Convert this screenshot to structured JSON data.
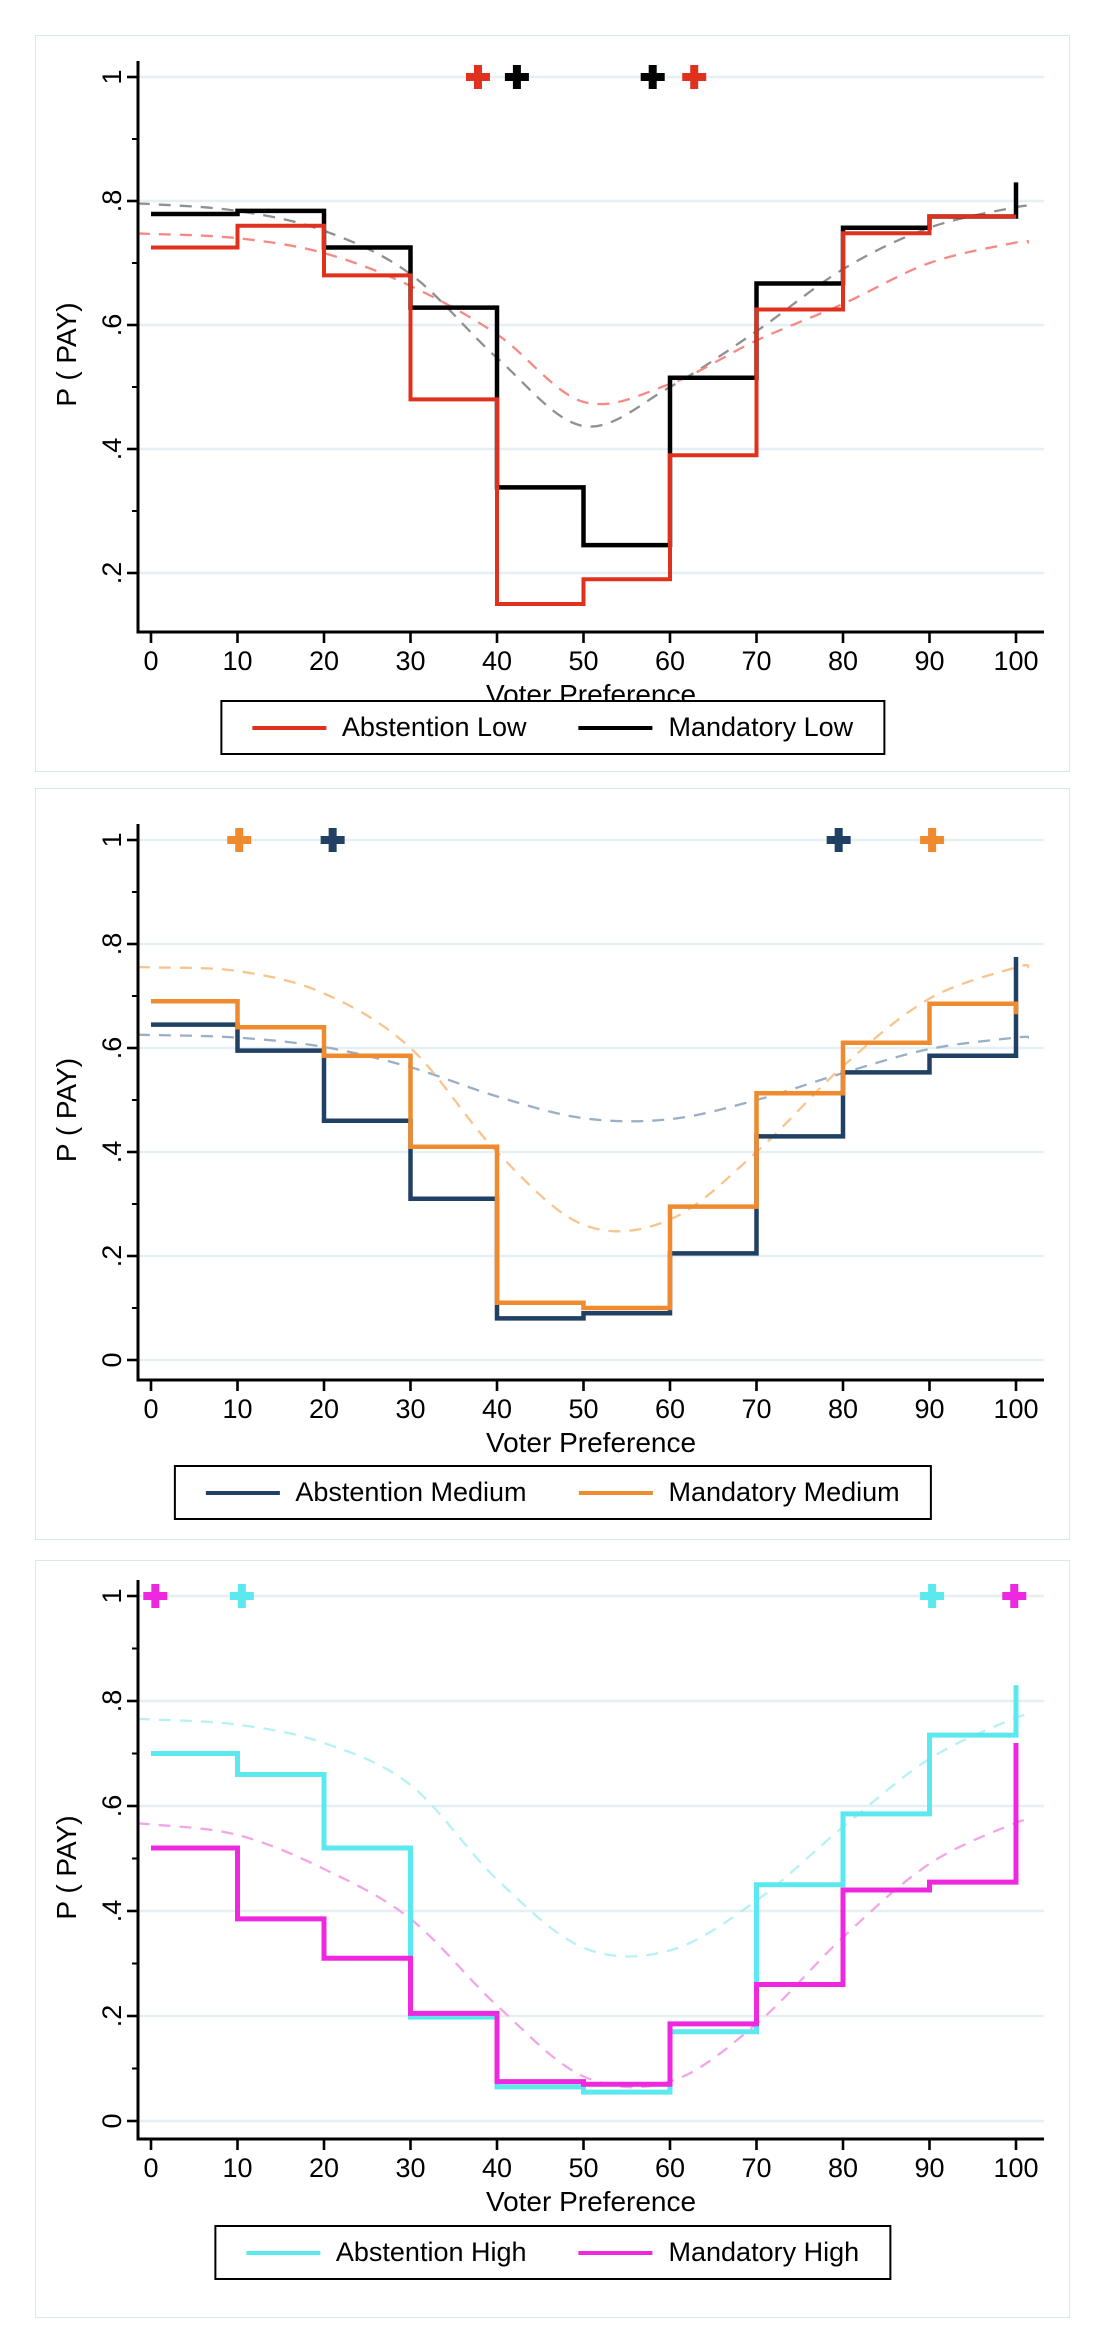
{
  "page": {
    "background": "#ffffff"
  },
  "chart_data": [
    {
      "type": "step-line",
      "panel": "low-stakes",
      "xlabel": "Voter Preference",
      "ylabel": "P ( PAY)",
      "x_ticks": [
        0,
        10,
        20,
        30,
        40,
        50,
        60,
        70,
        80,
        90,
        100
      ],
      "y_ticks": [
        {
          "label": "1",
          "value": 1
        },
        {
          "label": ".8",
          "value": 0.8
        },
        {
          "label": ".6",
          "value": 0.6
        },
        {
          "label": ".4",
          "value": 0.4
        },
        {
          "label": ".2",
          "value": 0.2
        }
      ],
      "y_minor_ticks": [
        0.9,
        0.7,
        0.5,
        0.3
      ],
      "ylim": [
        0.105,
        1.03
      ],
      "xlim": [
        0,
        100
      ],
      "grid": true,
      "legend_position": "bottom-center",
      "step_x": [
        0,
        10,
        20,
        30,
        40,
        50,
        60,
        70,
        80,
        90,
        100
      ],
      "series": [
        {
          "name": "Abstention Low",
          "color": "#e0301e",
          "line_width": 4,
          "draw_order": 2,
          "step_values": [
            0.725,
            0.76,
            0.68,
            0.48,
            0.15,
            0.19,
            0.39,
            0.625,
            0.748,
            0.775
          ],
          "end_value": null,
          "markers_y1_x": [
            37.8,
            62.8
          ],
          "fit_curve": {
            "color": "#f58a85",
            "x": [
              0,
              10,
              20,
              30,
              40,
              50,
              60,
              70,
              80,
              90,
              100
            ],
            "y": [
              0.747,
              0.74,
              0.716,
              0.663,
              0.585,
              0.476,
              0.505,
              0.575,
              0.634,
              0.7,
              0.733
            ]
          }
        },
        {
          "name": "Mandatory Low",
          "color": "#000000",
          "line_width": 4.5,
          "draw_order": 1,
          "step_values": [
            0.779,
            0.784,
            0.725,
            0.628,
            0.338,
            0.245,
            0.515,
            0.667,
            0.757,
            0.775
          ],
          "end_value": 0.83,
          "markers_y1_x": [
            42.3,
            58.0
          ],
          "fit_curve": {
            "color": "#8f9090",
            "x": [
              0,
              10,
              20,
              30,
              40,
              50,
              60,
              70,
              80,
              90,
              100
            ],
            "y": [
              0.795,
              0.784,
              0.752,
              0.682,
              0.547,
              0.437,
              0.5,
              0.59,
              0.69,
              0.757,
              0.79
            ]
          }
        }
      ]
    },
    {
      "type": "step-line",
      "panel": "medium-stakes",
      "xlabel": "Voter Preference",
      "ylabel": "P ( PAY)",
      "x_ticks": [
        0,
        10,
        20,
        30,
        40,
        50,
        60,
        70,
        80,
        90,
        100
      ],
      "y_ticks": [
        {
          "label": "1",
          "value": 1
        },
        {
          "label": ".8",
          "value": 0.8
        },
        {
          "label": ".6",
          "value": 0.6
        },
        {
          "label": ".4",
          "value": 0.4
        },
        {
          "label": ".2",
          "value": 0.2
        },
        {
          "label": "0",
          "value": 0
        }
      ],
      "y_minor_ticks": [
        0.9,
        0.7,
        0.5,
        0.3,
        0.1
      ],
      "ylim": [
        -0.04,
        1.03
      ],
      "xlim": [
        0,
        100
      ],
      "grid": true,
      "legend_position": "bottom-center",
      "step_x": [
        0,
        10,
        20,
        30,
        40,
        50,
        60,
        70,
        80,
        90,
        100
      ],
      "series": [
        {
          "name": "Abstention Medium",
          "color": "#204064",
          "line_width": 4.5,
          "draw_order": 1,
          "step_values": [
            0.645,
            0.595,
            0.46,
            0.31,
            0.08,
            0.09,
            0.205,
            0.43,
            0.553,
            0.585
          ],
          "end_value": 0.775,
          "markers_y1_x": [
            21.0,
            79.5
          ],
          "fit_curve": {
            "color": "#9aafc4",
            "x": [
              0,
              10,
              20,
              30,
              40,
              50,
              60,
              70,
              80,
              90,
              100
            ],
            "y": [
              0.625,
              0.62,
              0.602,
              0.563,
              0.507,
              0.465,
              0.463,
              0.5,
              0.552,
              0.598,
              0.62
            ]
          }
        },
        {
          "name": "Mandatory Medium",
          "color": "#ef8b2e",
          "line_width": 4.5,
          "draw_order": 2,
          "step_values": [
            0.69,
            0.64,
            0.585,
            0.41,
            0.11,
            0.1,
            0.295,
            0.513,
            0.61,
            0.685
          ],
          "end_value": 0.665,
          "markers_y1_x": [
            10.2,
            90.3
          ],
          "fit_curve": {
            "color": "#f8c48d",
            "x": [
              0,
              10,
              20,
              30,
              40,
              50,
              60,
              70,
              80,
              90,
              100
            ],
            "y": [
              0.755,
              0.748,
              0.705,
              0.6,
              0.4,
              0.26,
              0.27,
              0.4,
              0.565,
              0.695,
              0.755
            ]
          }
        }
      ]
    },
    {
      "type": "step-line",
      "panel": "high-stakes",
      "xlabel": "Voter Preference",
      "ylabel": "P ( PAY)",
      "x_ticks": [
        0,
        10,
        20,
        30,
        40,
        50,
        60,
        70,
        80,
        90,
        100
      ],
      "y_ticks": [
        {
          "label": "1",
          "value": 1
        },
        {
          "label": ".8",
          "value": 0.8
        },
        {
          "label": ".6",
          "value": 0.6
        },
        {
          "label": ".4",
          "value": 0.4
        },
        {
          "label": ".2",
          "value": 0.2
        },
        {
          "label": "0",
          "value": 0
        }
      ],
      "y_minor_ticks": [
        0.9,
        0.7,
        0.5,
        0.3,
        0.1
      ],
      "ylim": [
        -0.035,
        1.03
      ],
      "xlim": [
        0,
        100
      ],
      "grid": true,
      "legend_position": "bottom-center",
      "step_x": [
        0,
        10,
        20,
        30,
        40,
        50,
        60,
        70,
        80,
        90,
        100
      ],
      "series": [
        {
          "name": "Abstention High",
          "color": "#5be9ef",
          "line_width": 5,
          "draw_order": 1,
          "step_values": [
            0.7,
            0.66,
            0.52,
            0.198,
            0.065,
            0.055,
            0.17,
            0.45,
            0.585,
            0.735
          ],
          "end_value": 0.83,
          "markers_y1_x": [
            10.5,
            90.3
          ],
          "fit_curve": {
            "color": "#b5f1f5",
            "x": [
              0,
              10,
              20,
              30,
              40,
              50,
              60,
              70,
              80,
              90,
              100
            ],
            "y": [
              0.765,
              0.755,
              0.72,
              0.64,
              0.46,
              0.33,
              0.325,
              0.42,
              0.56,
              0.69,
              0.768
            ]
          }
        },
        {
          "name": "Mandatory High",
          "color": "#ed28df",
          "line_width": 5,
          "draw_order": 2,
          "step_values": [
            0.52,
            0.385,
            0.31,
            0.205,
            0.075,
            0.07,
            0.185,
            0.26,
            0.44,
            0.455
          ],
          "end_value": 0.72,
          "markers_y1_x": [
            0.5,
            99.8
          ],
          "fit_curve": {
            "color": "#f2a6e8",
            "x": [
              0,
              10,
              20,
              30,
              40,
              50,
              60,
              70,
              80,
              90,
              100
            ],
            "y": [
              0.565,
              0.545,
              0.48,
              0.385,
              0.22,
              0.085,
              0.075,
              0.185,
              0.35,
              0.49,
              0.568
            ]
          }
        }
      ]
    }
  ]
}
